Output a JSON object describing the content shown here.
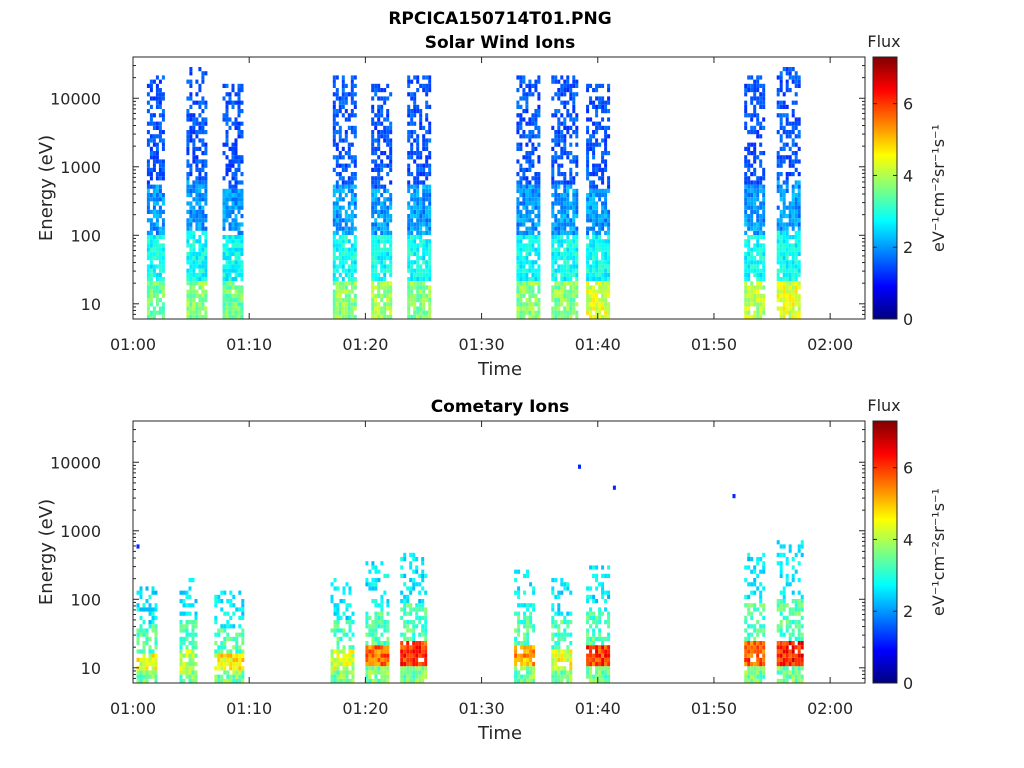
{
  "figure": {
    "title": "RPCICA150714T01.PNG"
  },
  "colors": {
    "axis": "#262626",
    "colormap": [
      "#00007f",
      "#0000ff",
      "#007fff",
      "#00ffff",
      "#7fff7f",
      "#ffff00",
      "#ff7f00",
      "#ff0000",
      "#7f0000"
    ]
  },
  "chart_data": [
    {
      "type": "heatmap",
      "title": "Solar Wind Ions",
      "xlabel": "Time",
      "ylabel": "Energy (eV)",
      "xlim": [
        "01:00",
        "02:03"
      ],
      "ylim": [
        6,
        40000
      ],
      "yscale": "log",
      "xticks": [
        "01:00",
        "01:10",
        "01:20",
        "01:30",
        "01:40",
        "01:50",
        "02:00"
      ],
      "yticks": [
        {
          "value": 10,
          "label": "10"
        },
        {
          "value": 100,
          "label": "100"
        },
        {
          "value": 1000,
          "label": "1000"
        },
        {
          "value": 10000,
          "label": "10000"
        }
      ],
      "colorbar": {
        "title": "Flux",
        "label": "eV⁻¹cm⁻²sr⁻¹s⁻¹",
        "range": [
          0,
          7.3
        ],
        "ticks": [
          "0",
          "2",
          "4",
          "6"
        ]
      },
      "bursts": [
        {
          "start_min": 1.2,
          "end_min": 2.6,
          "e_top": 20000,
          "low_level": 4.0
        },
        {
          "start_min": 4.6,
          "end_min": 6.3,
          "e_top": 25000,
          "low_level": 4.2
        },
        {
          "start_min": 7.7,
          "end_min": 9.5,
          "e_top": 15000,
          "low_level": 4.0
        },
        {
          "start_min": 17.2,
          "end_min": 19.2,
          "e_top": 20000,
          "low_level": 4.2
        },
        {
          "start_min": 20.5,
          "end_min": 22.2,
          "e_top": 15000,
          "low_level": 4.4
        },
        {
          "start_min": 23.6,
          "end_min": 25.6,
          "e_top": 20000,
          "low_level": 4.2
        },
        {
          "start_min": 33.0,
          "end_min": 35.0,
          "e_top": 20000,
          "low_level": 4.2
        },
        {
          "start_min": 36.0,
          "end_min": 38.2,
          "e_top": 20000,
          "low_level": 4.2
        },
        {
          "start_min": 39.0,
          "end_min": 41.0,
          "e_top": 15000,
          "low_level": 4.8
        },
        {
          "start_min": 52.6,
          "end_min": 54.4,
          "e_top": 20000,
          "low_level": 4.6
        },
        {
          "start_min": 55.4,
          "end_min": 57.4,
          "e_top": 25000,
          "low_level": 4.8
        }
      ]
    },
    {
      "type": "heatmap",
      "title": "Cometary Ions",
      "xlabel": "Time",
      "ylabel": "Energy (eV)",
      "xlim": [
        "01:00",
        "02:03"
      ],
      "ylim": [
        6,
        40000
      ],
      "yscale": "log",
      "xticks": [
        "01:00",
        "01:10",
        "01:20",
        "01:30",
        "01:40",
        "01:50",
        "02:00"
      ],
      "yticks": [
        {
          "value": 10,
          "label": "10"
        },
        {
          "value": 100,
          "label": "100"
        },
        {
          "value": 1000,
          "label": "1000"
        },
        {
          "value": 10000,
          "label": "10000"
        }
      ],
      "colorbar": {
        "title": "Flux",
        "label": "eV⁻¹cm⁻²sr⁻¹s⁻¹",
        "range": [
          0,
          7.3
        ],
        "ticks": [
          "0",
          "2",
          "4",
          "6"
        ]
      },
      "bursts": [
        {
          "start_min": 0.3,
          "end_min": 2.0,
          "e_top": 150,
          "peak_level": 5.0
        },
        {
          "start_min": 4.0,
          "end_min": 5.5,
          "e_top": 200,
          "peak_level": 4.6
        },
        {
          "start_min": 7.0,
          "end_min": 9.5,
          "e_top": 120,
          "peak_level": 5.2
        },
        {
          "start_min": 17.0,
          "end_min": 19.0,
          "e_top": 200,
          "peak_level": 4.8
        },
        {
          "start_min": 20.0,
          "end_min": 22.0,
          "e_top": 350,
          "peak_level": 6.2
        },
        {
          "start_min": 23.0,
          "end_min": 25.2,
          "e_top": 420,
          "peak_level": 6.6
        },
        {
          "start_min": 32.8,
          "end_min": 34.6,
          "e_top": 300,
          "peak_level": 5.8
        },
        {
          "start_min": 36.0,
          "end_min": 37.8,
          "e_top": 200,
          "peak_level": 5.0
        },
        {
          "start_min": 39.0,
          "end_min": 41.0,
          "e_top": 300,
          "peak_level": 6.6
        },
        {
          "start_min": 52.6,
          "end_min": 54.4,
          "e_top": 450,
          "peak_level": 6.4
        },
        {
          "start_min": 55.4,
          "end_min": 57.6,
          "e_top": 700,
          "peak_level": 6.8
        }
      ],
      "isolated_points": [
        {
          "time_min": 0.3,
          "energy": 550
        },
        {
          "time_min": 38.3,
          "energy": 9000
        },
        {
          "time_min": 41.3,
          "energy": 4200
        },
        {
          "time_min": 51.6,
          "energy": 3300
        }
      ]
    }
  ]
}
